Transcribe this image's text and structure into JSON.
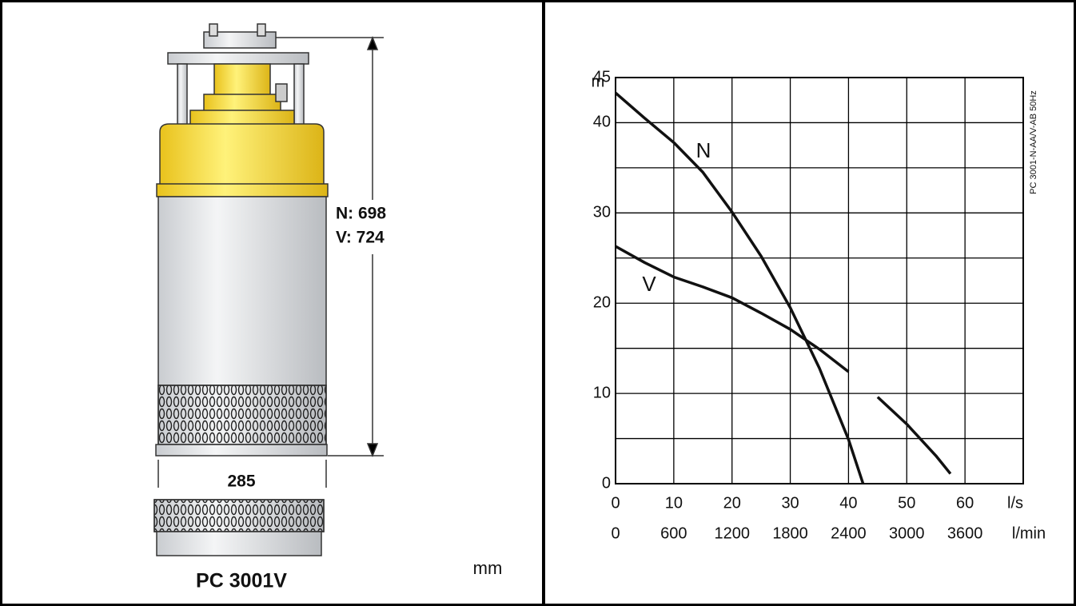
{
  "drawing": {
    "height_label_n": "N: 698",
    "height_label_v": "V: 724",
    "width_label": "285",
    "model": "PC 3001V",
    "unit": "mm"
  },
  "chart_data": {
    "type": "line",
    "ylabel": "m",
    "xlabel": "l/s",
    "x2label": "l/min",
    "side_note": "PC 3001-N-AA/V-AB 50Hz",
    "x": [
      0,
      5,
      10,
      15,
      20,
      25,
      30,
      35,
      40,
      42.5,
      45,
      50,
      55,
      57.5
    ],
    "series": [
      {
        "name": "N",
        "color": "#111111",
        "values": [
          43.3,
          40.5,
          37.8,
          34.5,
          30.1,
          25.2,
          19.5,
          12.8,
          4.9,
          0,
          null,
          null,
          null,
          null
        ]
      },
      {
        "name": "V",
        "color": "#111111",
        "values": [
          26.3,
          24.5,
          22.9,
          21.8,
          20.6,
          18.9,
          17.1,
          14.9,
          12.4,
          null,
          9.6,
          6.6,
          3.1,
          1.1
        ]
      }
    ],
    "xlim": [
      0,
      70
    ],
    "xticks": [
      0,
      10,
      20,
      30,
      40,
      50,
      60
    ],
    "x2lim": [
      0,
      4200
    ],
    "x2ticks": [
      0,
      600,
      1200,
      1800,
      2400,
      3000,
      3600
    ],
    "ylim": [
      0,
      45
    ],
    "yticks": [
      0,
      10,
      20,
      30,
      40,
      45
    ],
    "yminor": [
      5,
      15,
      25,
      35
    ],
    "grid": true
  }
}
